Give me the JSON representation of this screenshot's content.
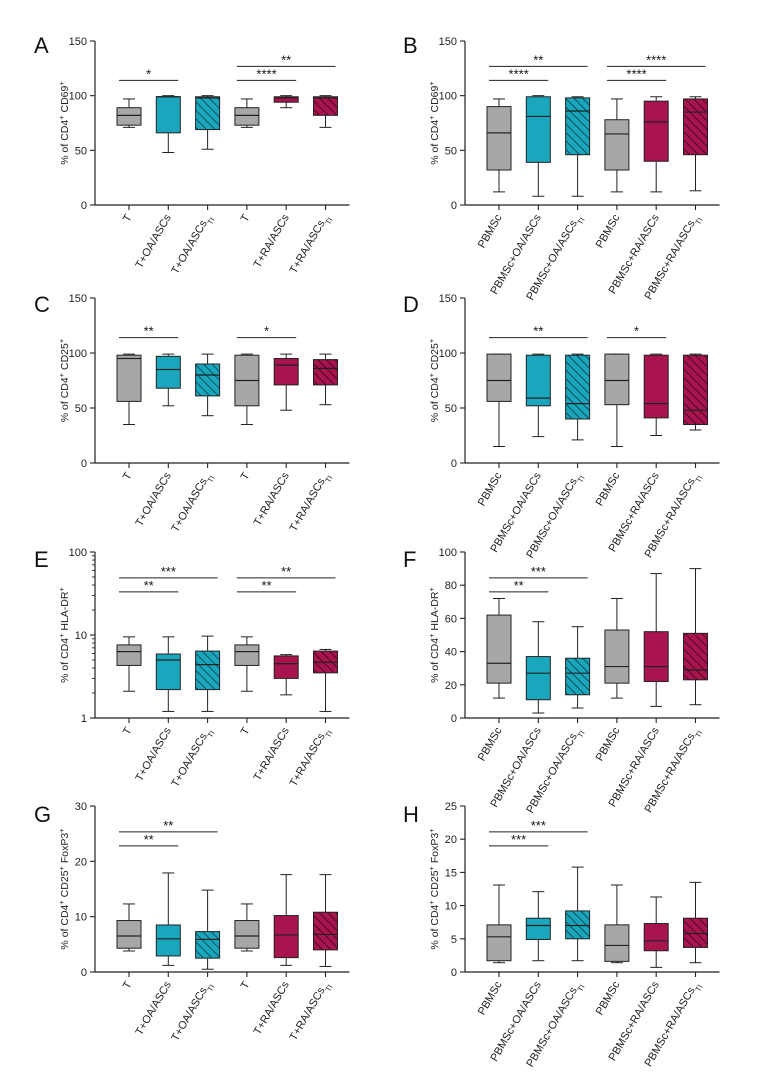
{
  "figure": {
    "title": "Eight-panel box plot figure"
  },
  "colors": {
    "gray": "#a7a7a7",
    "teal": "#1aa6bd",
    "magenta": "#a8144e",
    "line": "#222222"
  },
  "chart_data": [
    {
      "type": "box",
      "letter": "A",
      "ylabel": {
        "pre": "% of CD4",
        "sup1": "+",
        "mid": " CD69",
        "sup2": "+",
        "rest": "",
        "sup3": ""
      },
      "scale": "linear",
      "ylim": [
        0,
        150
      ],
      "ticks": [
        0,
        50,
        100,
        150
      ],
      "categories": [
        {
          "label": "T",
          "sub": "",
          "color": "gray",
          "hatch": false
        },
        {
          "label": "T+OA/ASCs",
          "sub": "",
          "color": "teal",
          "hatch": false
        },
        {
          "label": "T+OA/ASCs",
          "sub": "TI",
          "color": "teal",
          "hatch": true
        },
        {
          "label": "T",
          "sub": "",
          "color": "gray",
          "hatch": false
        },
        {
          "label": "T+RA/ASCs",
          "sub": "",
          "color": "magenta",
          "hatch": false
        },
        {
          "label": "T+RA/ASCs",
          "sub": "TI",
          "color": "magenta",
          "hatch": true
        }
      ],
      "boxes": [
        {
          "min": 71,
          "q1": 73,
          "median": 82,
          "q3": 89,
          "max": 97
        },
        {
          "min": 48,
          "q1": 66,
          "median": 99,
          "q3": 99,
          "max": 100
        },
        {
          "min": 51,
          "q1": 69,
          "median": 98,
          "q3": 99,
          "max": 100
        },
        {
          "min": 71,
          "q1": 73,
          "median": 82,
          "q3": 89,
          "max": 97
        },
        {
          "min": 89,
          "q1": 94,
          "median": 98,
          "q3": 99,
          "max": 100
        },
        {
          "min": 71,
          "q1": 82,
          "median": 98,
          "q3": 99,
          "max": 100
        }
      ],
      "significance": [
        {
          "from": 0,
          "to": 1,
          "label": "*",
          "level": 0
        },
        {
          "from": 3,
          "to": 4,
          "label": "****",
          "level": 0
        },
        {
          "from": 3,
          "to": 5,
          "label": "**",
          "level": 1
        }
      ]
    },
    {
      "type": "box",
      "letter": "B",
      "ylabel": {
        "pre": "% of CD4",
        "sup1": "+",
        "mid": " CD69",
        "sup2": "+",
        "rest": "",
        "sup3": ""
      },
      "scale": "linear",
      "ylim": [
        0,
        150
      ],
      "ticks": [
        0,
        50,
        100,
        150
      ],
      "categories": [
        {
          "label": "PBMSc",
          "sub": "",
          "color": "gray",
          "hatch": false
        },
        {
          "label": "PBMSc+OA/ASCs",
          "sub": "",
          "color": "teal",
          "hatch": false
        },
        {
          "label": "PBMSc+OA/ASCs",
          "sub": "TI",
          "color": "teal",
          "hatch": true
        },
        {
          "label": "PBMSc",
          "sub": "",
          "color": "gray",
          "hatch": false
        },
        {
          "label": "PBMSc+RA/ASCs",
          "sub": "",
          "color": "magenta",
          "hatch": false
        },
        {
          "label": "PBMSc+RA/ASCs",
          "sub": "TI",
          "color": "magenta",
          "hatch": true
        }
      ],
      "boxes": [
        {
          "min": 12,
          "q1": 32,
          "median": 66,
          "q3": 90,
          "max": 97
        },
        {
          "min": 8,
          "q1": 39,
          "median": 81,
          "q3": 99,
          "max": 100
        },
        {
          "min": 8,
          "q1": 46,
          "median": 86,
          "q3": 98,
          "max": 99
        },
        {
          "min": 12,
          "q1": 32,
          "median": 65,
          "q3": 78,
          "max": 97
        },
        {
          "min": 12,
          "q1": 40,
          "median": 76,
          "q3": 95,
          "max": 99
        },
        {
          "min": 13,
          "q1": 46,
          "median": 85,
          "q3": 97,
          "max": 99
        }
      ],
      "significance": [
        {
          "from": 0,
          "to": 1,
          "label": "****",
          "level": 0
        },
        {
          "from": 0,
          "to": 2,
          "label": "**",
          "level": 1
        },
        {
          "from": 3,
          "to": 4,
          "label": "****",
          "level": 0
        },
        {
          "from": 3,
          "to": 5,
          "label": "****",
          "level": 1
        }
      ]
    },
    {
      "type": "box",
      "letter": "C",
      "ylabel": {
        "pre": "% of CD4",
        "sup1": "+",
        "mid": " CD25",
        "sup2": "+",
        "rest": "",
        "sup3": ""
      },
      "scale": "linear",
      "ylim": [
        0,
        150
      ],
      "ticks": [
        0,
        50,
        100,
        150
      ],
      "categories": [
        {
          "label": "T",
          "sub": "",
          "color": "gray",
          "hatch": false
        },
        {
          "label": "T+OA/ASCs",
          "sub": "",
          "color": "teal",
          "hatch": false
        },
        {
          "label": "T+OA/ASCs",
          "sub": "TI",
          "color": "teal",
          "hatch": true
        },
        {
          "label": "T",
          "sub": "",
          "color": "gray",
          "hatch": false
        },
        {
          "label": "T+RA/ASCs",
          "sub": "",
          "color": "magenta",
          "hatch": false
        },
        {
          "label": "T+RA/ASCs",
          "sub": "TI",
          "color": "magenta",
          "hatch": true
        }
      ],
      "boxes": [
        {
          "min": 35,
          "q1": 56,
          "median": 95,
          "q3": 98,
          "max": 99
        },
        {
          "min": 52,
          "q1": 68,
          "median": 85,
          "q3": 97,
          "max": 99
        },
        {
          "min": 43,
          "q1": 61,
          "median": 80,
          "q3": 90,
          "max": 99
        },
        {
          "min": 35,
          "q1": 52,
          "median": 75,
          "q3": 98,
          "max": 99
        },
        {
          "min": 48,
          "q1": 71,
          "median": 89,
          "q3": 95,
          "max": 99
        },
        {
          "min": 53,
          "q1": 71,
          "median": 86,
          "q3": 94,
          "max": 99
        }
      ],
      "significance": [
        {
          "from": 0,
          "to": 1,
          "label": "**",
          "level": 0
        },
        {
          "from": 3,
          "to": 4,
          "label": "*",
          "level": 0
        }
      ]
    },
    {
      "type": "box",
      "letter": "D",
      "ylabel": {
        "pre": "% of CD4",
        "sup1": "+",
        "mid": " CD25",
        "sup2": "+",
        "rest": "",
        "sup3": ""
      },
      "scale": "linear",
      "ylim": [
        0,
        150
      ],
      "ticks": [
        0,
        50,
        100,
        150
      ],
      "categories": [
        {
          "label": "PBMSc",
          "sub": "",
          "color": "gray",
          "hatch": false
        },
        {
          "label": "PBMSc+OA/ASCs",
          "sub": "",
          "color": "teal",
          "hatch": false
        },
        {
          "label": "PBMSc+OA/ASCs",
          "sub": "TI",
          "color": "teal",
          "hatch": true
        },
        {
          "label": "PBMSc",
          "sub": "",
          "color": "gray",
          "hatch": false
        },
        {
          "label": "PBMSc+RA/ASCs",
          "sub": "",
          "color": "magenta",
          "hatch": false
        },
        {
          "label": "PBMSc+RA/ASCs",
          "sub": "TI",
          "color": "magenta",
          "hatch": true
        }
      ],
      "boxes": [
        {
          "min": 15,
          "q1": 56,
          "median": 75,
          "q3": 99,
          "max": 99
        },
        {
          "min": 24,
          "q1": 52,
          "median": 59,
          "q3": 98,
          "max": 99
        },
        {
          "min": 21,
          "q1": 40,
          "median": 54,
          "q3": 98,
          "max": 99
        },
        {
          "min": 15,
          "q1": 53,
          "median": 75,
          "q3": 99,
          "max": 99
        },
        {
          "min": 25,
          "q1": 41,
          "median": 54,
          "q3": 98,
          "max": 99
        },
        {
          "min": 30,
          "q1": 35,
          "median": 48,
          "q3": 98,
          "max": 99
        }
      ],
      "significance": [
        {
          "from": 0,
          "to": 2,
          "label": "**",
          "level": 0
        },
        {
          "from": 3,
          "to": 4,
          "label": "*",
          "level": 0
        }
      ]
    },
    {
      "type": "box",
      "letter": "E",
      "ylabel": {
        "pre": "% of CD4",
        "sup1": "+",
        "mid": " HLA-DR",
        "sup2": "+",
        "rest": "",
        "sup3": ""
      },
      "scale": "log",
      "ylim": [
        1,
        100
      ],
      "ticks": [
        1,
        10,
        100
      ],
      "categories": [
        {
          "label": "T",
          "sub": "",
          "color": "gray",
          "hatch": false
        },
        {
          "label": "T+OA/ASCs",
          "sub": "",
          "color": "teal",
          "hatch": false
        },
        {
          "label": "T+OA/ASCs",
          "sub": "TI",
          "color": "teal",
          "hatch": true
        },
        {
          "label": "T",
          "sub": "",
          "color": "gray",
          "hatch": false
        },
        {
          "label": "T+RA/ASCs",
          "sub": "",
          "color": "magenta",
          "hatch": false
        },
        {
          "label": "T+RA/ASCs",
          "sub": "TI",
          "color": "magenta",
          "hatch": true
        }
      ],
      "boxes": [
        {
          "min": 2.1,
          "q1": 4.3,
          "median": 6.3,
          "q3": 7.6,
          "max": 9.5
        },
        {
          "min": 1.2,
          "q1": 2.2,
          "median": 5.0,
          "q3": 5.9,
          "max": 9.5
        },
        {
          "min": 1.2,
          "q1": 2.2,
          "median": 4.4,
          "q3": 6.4,
          "max": 9.7
        },
        {
          "min": 2.1,
          "q1": 4.3,
          "median": 6.3,
          "q3": 7.6,
          "max": 9.5
        },
        {
          "min": 1.9,
          "q1": 3.0,
          "median": 4.5,
          "q3": 5.6,
          "max": 5.8
        },
        {
          "min": 1.2,
          "q1": 3.5,
          "median": 4.7,
          "q3": 6.4,
          "max": 6.7
        }
      ],
      "significance": [
        {
          "from": 0,
          "to": 1,
          "label": "**",
          "level": 0
        },
        {
          "from": 0,
          "to": 2,
          "label": "***",
          "level": 1
        },
        {
          "from": 3,
          "to": 4,
          "label": "**",
          "level": 0
        },
        {
          "from": 3,
          "to": 5,
          "label": "**",
          "level": 1
        }
      ]
    },
    {
      "type": "box",
      "letter": "F",
      "ylabel": {
        "pre": "% of CD4",
        "sup1": "+",
        "mid": " HLA-DR",
        "sup2": "+",
        "rest": "",
        "sup3": ""
      },
      "scale": "linear",
      "ylim": [
        0,
        100
      ],
      "ticks": [
        0,
        20,
        40,
        60,
        80,
        100
      ],
      "categories": [
        {
          "label": "PBMSc",
          "sub": "",
          "color": "gray",
          "hatch": false
        },
        {
          "label": "PBMSc+OA/ASCs",
          "sub": "",
          "color": "teal",
          "hatch": false
        },
        {
          "label": "PBMSc+OA/ASCs",
          "sub": "TI",
          "color": "teal",
          "hatch": true
        },
        {
          "label": "PBMSc",
          "sub": "",
          "color": "gray",
          "hatch": false
        },
        {
          "label": "PBMSc+RA/ASCs",
          "sub": "",
          "color": "magenta",
          "hatch": false
        },
        {
          "label": "PBMSc+RA/ASCs",
          "sub": "TI",
          "color": "magenta",
          "hatch": true
        }
      ],
      "boxes": [
        {
          "min": 12,
          "q1": 21,
          "median": 33,
          "q3": 62,
          "max": 72
        },
        {
          "min": 3,
          "q1": 11,
          "median": 27,
          "q3": 37,
          "max": 58
        },
        {
          "min": 6,
          "q1": 14,
          "median": 27,
          "q3": 36,
          "max": 55
        },
        {
          "min": 12,
          "q1": 21,
          "median": 31,
          "q3": 53,
          "max": 72
        },
        {
          "min": 7,
          "q1": 22,
          "median": 31,
          "q3": 52,
          "max": 87
        },
        {
          "min": 8,
          "q1": 23,
          "median": 29,
          "q3": 51,
          "max": 90
        }
      ],
      "significance": [
        {
          "from": 0,
          "to": 1,
          "label": "**",
          "level": 0
        },
        {
          "from": 0,
          "to": 2,
          "label": "***",
          "level": 1
        }
      ]
    },
    {
      "type": "box",
      "letter": "G",
      "ylabel": {
        "pre": "% of CD4",
        "sup1": "+",
        "mid": " CD25",
        "sup2": "+",
        "rest": " FoxP3",
        "sup3": "+"
      },
      "scale": "linear",
      "ylim": [
        0,
        30
      ],
      "ticks": [
        0,
        10,
        20,
        30
      ],
      "categories": [
        {
          "label": "T",
          "sub": "",
          "color": "gray",
          "hatch": false
        },
        {
          "label": "T+OA/ASCs",
          "sub": "",
          "color": "teal",
          "hatch": false
        },
        {
          "label": "T+OA/ASCs",
          "sub": "TI",
          "color": "teal",
          "hatch": true
        },
        {
          "label": "T",
          "sub": "",
          "color": "gray",
          "hatch": false
        },
        {
          "label": "T+RA/ASCs",
          "sub": "",
          "color": "magenta",
          "hatch": false
        },
        {
          "label": "T+RA/ASCs",
          "sub": "TI",
          "color": "magenta",
          "hatch": true
        }
      ],
      "boxes": [
        {
          "min": 3.8,
          "q1": 4.3,
          "median": 6.5,
          "q3": 9.3,
          "max": 12.3
        },
        {
          "min": 1.2,
          "q1": 2.9,
          "median": 6.0,
          "q3": 8.5,
          "max": 17.9
        },
        {
          "min": 0.5,
          "q1": 2.5,
          "median": 5.9,
          "q3": 7.3,
          "max": 14.8
        },
        {
          "min": 3.8,
          "q1": 4.3,
          "median": 6.5,
          "q3": 9.3,
          "max": 12.3
        },
        {
          "min": 1.2,
          "q1": 2.6,
          "median": 6.7,
          "q3": 10.2,
          "max": 17.6
        },
        {
          "min": 1.0,
          "q1": 4.0,
          "median": 6.8,
          "q3": 10.8,
          "max": 17.6
        }
      ],
      "significance": [
        {
          "from": 0,
          "to": 1,
          "label": "**",
          "level": 0
        },
        {
          "from": 0,
          "to": 2,
          "label": "**",
          "level": 1
        }
      ]
    },
    {
      "type": "box",
      "letter": "H",
      "ylabel": {
        "pre": "% of CD4",
        "sup1": "+",
        "mid": " CD25",
        "sup2": "+",
        "rest": " FoxP3",
        "sup3": "+"
      },
      "scale": "linear",
      "ylim": [
        0,
        25
      ],
      "ticks": [
        0,
        5,
        10,
        15,
        20,
        25
      ],
      "categories": [
        {
          "label": "PBMSc",
          "sub": "",
          "color": "gray",
          "hatch": false
        },
        {
          "label": "PBMSc+OA/ASCs",
          "sub": "",
          "color": "teal",
          "hatch": false
        },
        {
          "label": "PBMSc+OA/ASCs",
          "sub": "TI",
          "color": "teal",
          "hatch": true
        },
        {
          "label": "PBMSc",
          "sub": "",
          "color": "gray",
          "hatch": false
        },
        {
          "label": "PBMSc+RA/ASCs",
          "sub": "",
          "color": "magenta",
          "hatch": false
        },
        {
          "label": "PBMSc+RA/ASCs",
          "sub": "TI",
          "color": "magenta",
          "hatch": true
        }
      ],
      "boxes": [
        {
          "min": 1.4,
          "q1": 1.7,
          "median": 5.3,
          "q3": 7.1,
          "max": 13.1
        },
        {
          "min": 1.7,
          "q1": 4.9,
          "median": 7.0,
          "q3": 8.1,
          "max": 12.1
        },
        {
          "min": 1.7,
          "q1": 5.0,
          "median": 7.0,
          "q3": 9.2,
          "max": 15.8
        },
        {
          "min": 1.4,
          "q1": 1.6,
          "median": 4.0,
          "q3": 7.1,
          "max": 13.1
        },
        {
          "min": 0.7,
          "q1": 3.2,
          "median": 4.7,
          "q3": 7.3,
          "max": 11.3
        },
        {
          "min": 1.4,
          "q1": 3.7,
          "median": 5.8,
          "q3": 8.1,
          "max": 13.5
        }
      ],
      "significance": [
        {
          "from": 0,
          "to": 1,
          "label": "***",
          "level": 0
        },
        {
          "from": 0,
          "to": 2,
          "label": "***",
          "level": 1
        }
      ]
    }
  ]
}
